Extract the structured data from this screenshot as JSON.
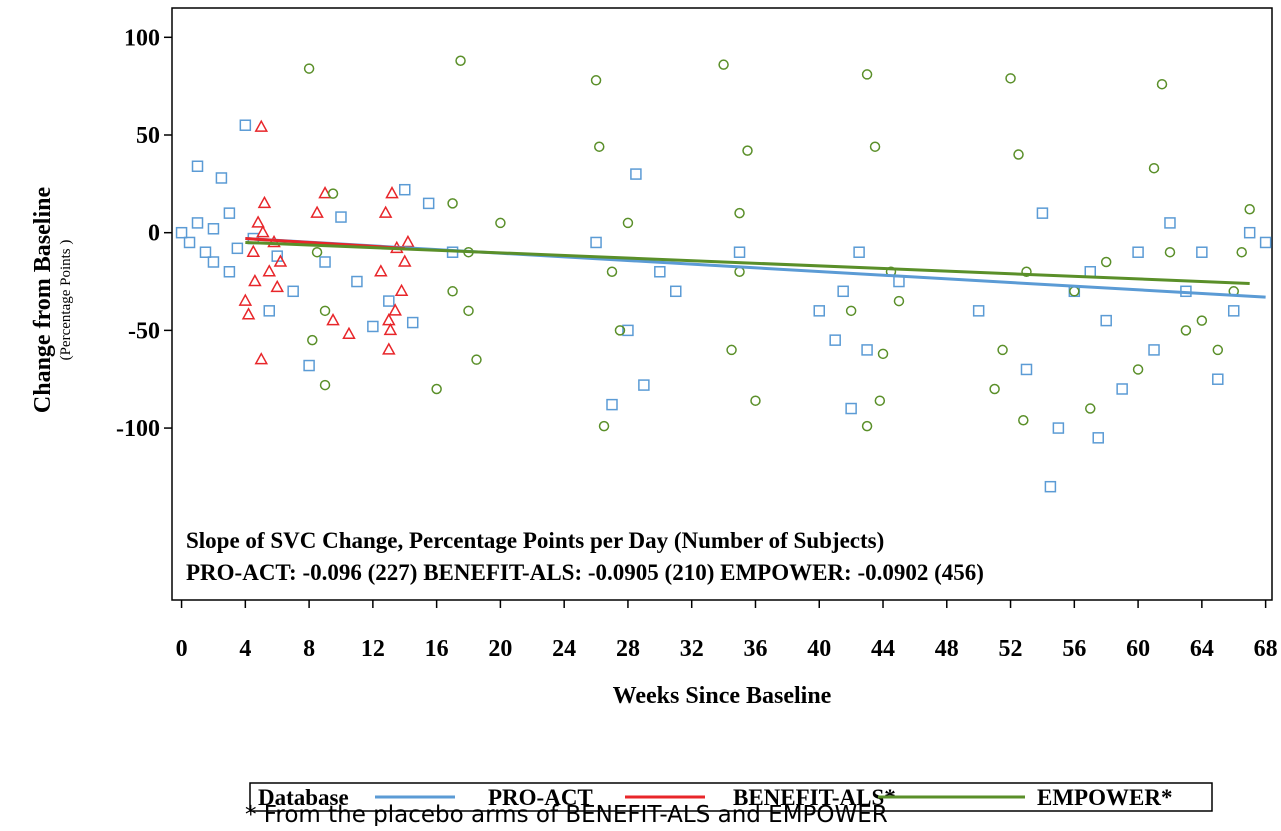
{
  "chart_data": {
    "type": "scatter",
    "x_label": "Weeks Since Baseline",
    "y_label": "Change from Baseline",
    "y_sublabel": "(Percentage Points )",
    "annotations": [
      "Slope of SVC Change, Percentage Points per Day (Number of Subjects)",
      "PRO-ACT: -0.096 (227)  BENEFIT-ALS: -0.0905 (210)  EMPOWER: -0.0902 (456)"
    ],
    "legend_title": "Database",
    "xlim": [
      -0.6,
      68.4
    ],
    "ylim": [
      -188,
      115
    ],
    "xticks": [
      0,
      4,
      8,
      12,
      16,
      20,
      24,
      28,
      32,
      36,
      40,
      44,
      48,
      52,
      56,
      60,
      64,
      68
    ],
    "yticks": [
      100,
      50,
      0,
      -50,
      -100
    ],
    "series": [
      {
        "name": "PRO-ACT",
        "color": "#5b9bd5",
        "marker": "square",
        "x": [
          0,
          0.5,
          1,
          1,
          1.5,
          2,
          2,
          2.5,
          3,
          3,
          3.5,
          4,
          4.5,
          5.5,
          6,
          7,
          8,
          9,
          10,
          11,
          12,
          13,
          14,
          14.5,
          15.5,
          17,
          26,
          27,
          28,
          28.5,
          29,
          30,
          31,
          35,
          40,
          41,
          41.5,
          42,
          42.5,
          43,
          45,
          50,
          53,
          54,
          54.5,
          55,
          56,
          57,
          57.5,
          58,
          59,
          60,
          61,
          62,
          63,
          64,
          65,
          66,
          67,
          68
        ],
        "values": [
          0,
          -5,
          34,
          5,
          -10,
          2,
          -15,
          28,
          -20,
          10,
          -8,
          55,
          -3,
          -40,
          -12,
          -30,
          -68,
          -15,
          8,
          -25,
          -48,
          -35,
          22,
          -46,
          15,
          -10,
          -5,
          -88,
          -50,
          30,
          -78,
          -20,
          -30,
          -10,
          -40,
          -55,
          -30,
          -90,
          -10,
          -60,
          -25,
          -40,
          -70,
          10,
          -130,
          -100,
          -30,
          -20,
          -105,
          -45,
          -80,
          -10,
          -60,
          5,
          -30,
          -10,
          -75,
          -40,
          0,
          -5
        ],
        "fit": {
          "x": [
            4,
            68
          ],
          "values": [
            -3,
            -33
          ]
        }
      },
      {
        "name": "BENEFIT-ALS*",
        "color": "#e8262a",
        "marker": "triangle",
        "x": [
          4,
          4.2,
          4.5,
          4.8,
          5,
          5,
          5.2,
          5.5,
          5.8,
          6,
          6.2,
          4.6,
          5.1,
          12.5,
          12.8,
          13,
          13,
          13.2,
          13.5,
          13.8,
          14,
          14.2,
          13.1,
          13.4,
          10.5,
          8.5,
          9,
          9.5
        ],
        "values": [
          -35,
          -42,
          -10,
          5,
          54,
          -65,
          15,
          -20,
          -5,
          -28,
          -15,
          -25,
          0,
          -20,
          10,
          -45,
          -60,
          20,
          -8,
          -30,
          -15,
          -5,
          -50,
          -40,
          -52,
          10,
          20,
          -45
        ],
        "fit": {
          "x": [
            4,
            14
          ],
          "values": [
            -3,
            -8
          ]
        }
      },
      {
        "name": "EMPOWER*",
        "color": "#5a8f29",
        "marker": "circle",
        "x": [
          8,
          8.5,
          9,
          9.5,
          9,
          8.2,
          16,
          17,
          17.5,
          18,
          18.5,
          17,
          18,
          20,
          26,
          26.5,
          27,
          26.2,
          27.5,
          28,
          34,
          35,
          35.5,
          34.5,
          36,
          35,
          42,
          43,
          43.5,
          44,
          43.8,
          44.5,
          43,
          45,
          51,
          52,
          52.5,
          53,
          52.8,
          51.5,
          56,
          57,
          58,
          60,
          61,
          61.5,
          62,
          63,
          64,
          65,
          66,
          67,
          66.5
        ],
        "values": [
          84,
          -10,
          -78,
          20,
          -40,
          -55,
          -80,
          -30,
          88,
          -10,
          -65,
          15,
          -40,
          5,
          78,
          -99,
          -20,
          44,
          -50,
          5,
          86,
          -20,
          42,
          -60,
          -86,
          10,
          -40,
          81,
          44,
          -62,
          -86,
          -20,
          -99,
          -35,
          -80,
          79,
          40,
          -20,
          -96,
          -60,
          -30,
          -90,
          -15,
          -70,
          33,
          76,
          -10,
          -50,
          -45,
          -60,
          -30,
          12,
          -10
        ],
        "fit": {
          "x": [
            4,
            67
          ],
          "values": [
            -5,
            -26
          ]
        }
      }
    ]
  },
  "footnote": "* From the placebo arms of BENEFIT-ALS and EMPOWER"
}
